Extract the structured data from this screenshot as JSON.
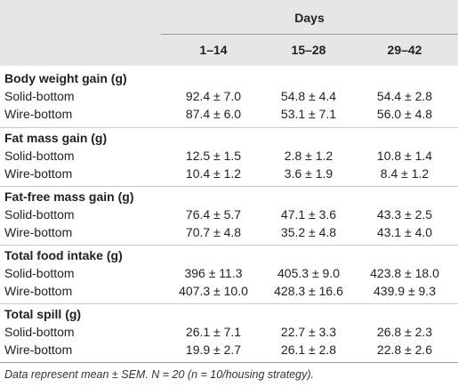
{
  "table": {
    "spanner": "Days",
    "columns": [
      "1–14",
      "15–28",
      "29–42"
    ],
    "groups": [
      {
        "title": "Body weight gain (g)",
        "rows": [
          {
            "label": "Solid-bottom",
            "values": [
              "92.4 ± 7.0",
              "54.8 ± 4.4",
              "54.4 ± 2.8"
            ]
          },
          {
            "label": "Wire-bottom",
            "values": [
              "87.4 ± 6.0",
              "53.1 ± 7.1",
              "56.0 ± 4.8"
            ]
          }
        ]
      },
      {
        "title": "Fat mass gain (g)",
        "rows": [
          {
            "label": "Solid-bottom",
            "values": [
              "12.5 ± 1.5",
              "2.8 ± 1.2",
              "10.8 ± 1.4"
            ]
          },
          {
            "label": "Wire-bottom",
            "values": [
              "10.4 ± 1.2",
              "3.6 ± 1.9",
              "8.4 ± 1.2"
            ]
          }
        ]
      },
      {
        "title": "Fat-free mass gain (g)",
        "rows": [
          {
            "label": "Solid-bottom",
            "values": [
              "76.4 ± 5.7",
              "47.1 ± 3.6",
              "43.3 ± 2.5"
            ]
          },
          {
            "label": "Wire-bottom",
            "values": [
              "70.7 ± 4.8",
              "35.2 ± 4.8",
              "43.1 ± 4.0"
            ]
          }
        ]
      },
      {
        "title": "Total food intake (g)",
        "rows": [
          {
            "label": "Solid-bottom",
            "values": [
              "396 ± 11.3",
              "405.3 ± 9.0",
              "423.8 ± 18.0"
            ]
          },
          {
            "label": "Wire-bottom",
            "values": [
              "407.3 ± 10.0",
              "428.3 ± 16.6",
              "439.9 ± 9.3"
            ]
          }
        ]
      },
      {
        "title": "Total spill (g)",
        "rows": [
          {
            "label": "Solid-bottom",
            "values": [
              "26.1 ± 7.1",
              "22.7 ± 3.3",
              "26.8 ± 2.3"
            ]
          },
          {
            "label": "Wire-bottom",
            "values": [
              "19.9 ± 2.7",
              "26.1 ± 2.8",
              "22.8 ± 2.6"
            ]
          }
        ]
      }
    ],
    "footnote": "Data represent mean ± SEM. N = 20 (n = 10/housing strategy)."
  },
  "colors": {
    "header_background": "#e6e6e6",
    "text": "#222222",
    "rule": "#9a9a9a"
  }
}
